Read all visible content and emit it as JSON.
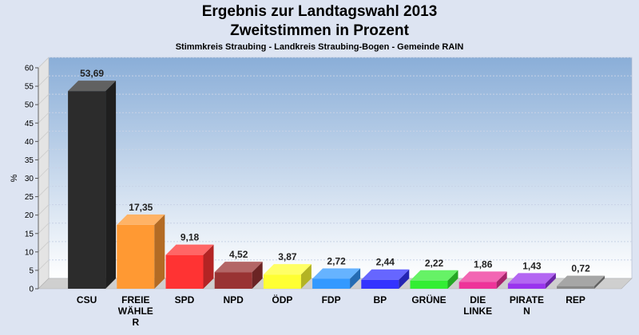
{
  "chart_data": {
    "type": "bar",
    "title": "Ergebnis zur Landtagswahl 2013",
    "subtitle": "Zweitstimmen in Prozent",
    "caption": "Stimmkreis Straubing - Landkreis Straubing-Bogen - Gemeinde RAIN",
    "ylabel": "%",
    "ylim": [
      0,
      60
    ],
    "yticks": [
      "0",
      "5",
      "10",
      "15",
      "20",
      "25",
      "30",
      "35",
      "40",
      "45",
      "50",
      "55",
      "60"
    ],
    "grid": true,
    "categories": [
      [
        "CSU"
      ],
      [
        "FREIE",
        "WÄHLE",
        "R"
      ],
      [
        "SPD"
      ],
      [
        "NPD"
      ],
      [
        "ÖDP"
      ],
      [
        "FDP"
      ],
      [
        "BP"
      ],
      [
        "GRÜNE"
      ],
      [
        "DIE",
        "LINKE"
      ],
      [
        "PIRATE",
        "N"
      ],
      [
        "REP"
      ]
    ],
    "values": [
      53.69,
      17.35,
      9.18,
      4.52,
      3.87,
      2.72,
      2.44,
      2.22,
      1.86,
      1.43,
      0.72
    ],
    "value_labels": [
      "53,69",
      "17,35",
      "9,18",
      "4,52",
      "3,87",
      "2,72",
      "2,44",
      "2,22",
      "1,86",
      "1,43",
      "0,72"
    ],
    "colors": [
      "#2c2c2c",
      "#ff9933",
      "#ff3333",
      "#993333",
      "#ffff33",
      "#3399ff",
      "#3333ff",
      "#33ee33",
      "#ee3399",
      "#9933ee",
      "#888888"
    ]
  }
}
